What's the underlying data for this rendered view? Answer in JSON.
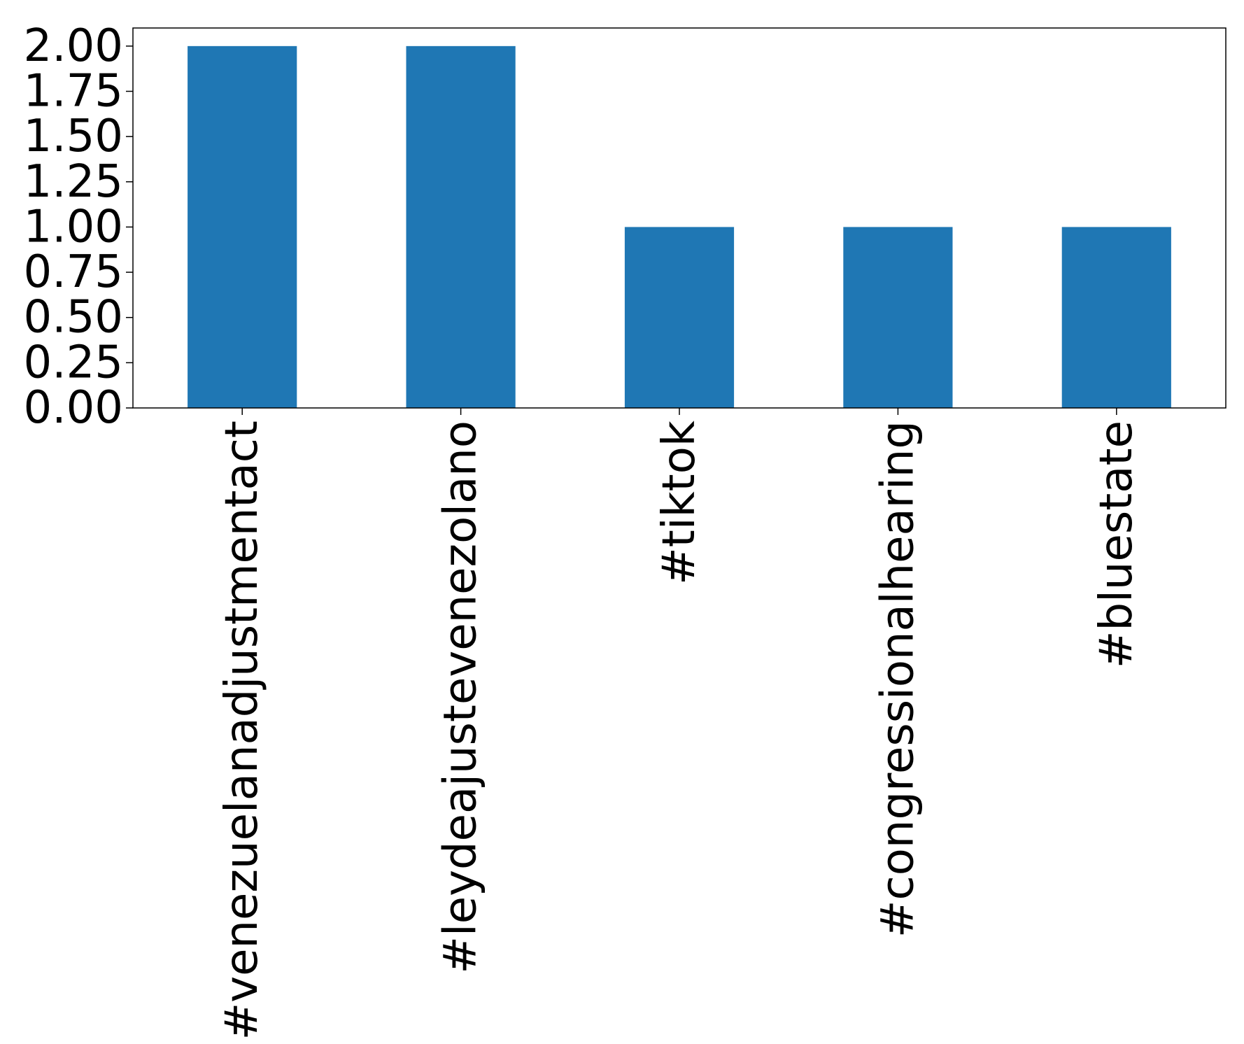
{
  "chart_data": {
    "type": "bar",
    "title": "",
    "xlabel": "",
    "ylabel": "",
    "categories": [
      "#venezuelanadjustmentact",
      "#leydeajustevenezolano",
      "#tiktok",
      "#congressionalhearing",
      "#bluestate"
    ],
    "values": [
      2,
      2,
      1,
      1,
      1
    ],
    "ylim": [
      0,
      2.1
    ],
    "yticks": [
      {
        "value": 0.0,
        "label": "0.00"
      },
      {
        "value": 0.25,
        "label": "0.25"
      },
      {
        "value": 0.5,
        "label": "0.50"
      },
      {
        "value": 0.75,
        "label": "0.75"
      },
      {
        "value": 1.0,
        "label": "1.00"
      },
      {
        "value": 1.25,
        "label": "1.25"
      },
      {
        "value": 1.5,
        "label": "1.50"
      },
      {
        "value": 1.75,
        "label": "1.75"
      },
      {
        "value": 2.0,
        "label": "2.00"
      }
    ],
    "bar_color": "#1f77b4",
    "grid": false,
    "legend": "none"
  }
}
